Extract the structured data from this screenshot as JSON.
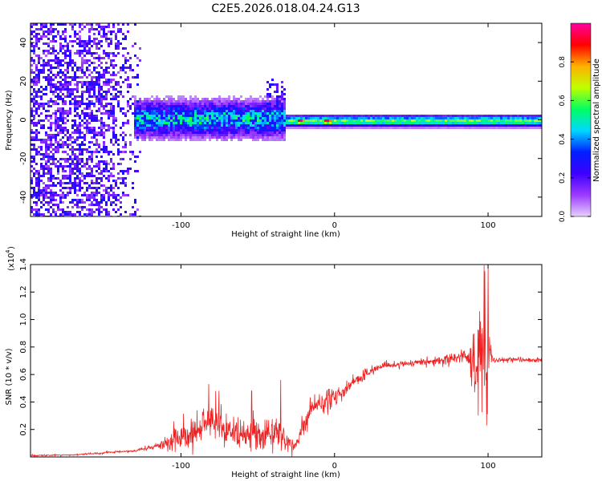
{
  "title": "C2E5.2026.018.04.24.G13",
  "chart_data": [
    {
      "type": "heatmap",
      "xlabel": "Height of straight line (km)",
      "ylabel": "Frequency (Hz)",
      "xlim": [
        -198,
        135
      ],
      "ylim": [
        -50,
        50
      ],
      "x_ticks": [
        -100,
        0,
        100
      ],
      "y_ticks": [
        -40,
        -20,
        0,
        20,
        40
      ],
      "colorbar": {
        "label": "Normalized spectral amplitude",
        "range": [
          0,
          1
        ],
        "ticks": [
          "0.0",
          "0.2",
          "0.4",
          "0.6",
          "0.8"
        ],
        "tick_values": [
          0.0,
          0.2,
          0.4,
          0.6,
          0.8
        ],
        "colors": [
          "#e6d0ff",
          "#9d3aff",
          "#3d00ff",
          "#0020ff",
          "#00d8ff",
          "#00ff60",
          "#c0ff00",
          "#ffb000",
          "#ff0000",
          "#ff00a0"
        ]
      },
      "features": [
        {
          "x_range": [
            -198,
            -125
          ],
          "description": "scattered low-amplitude noise across all frequencies"
        },
        {
          "x_range": [
            -132,
            -32
          ],
          "center_hz": 1,
          "amplitude": 0.45,
          "spread_hz": 9
        },
        {
          "x_range": [
            -32,
            135
          ],
          "center_hz": 0,
          "amplitude": 0.6,
          "spread_hz": 2.5
        },
        {
          "x": -22,
          "amplitude": 0.9
        },
        {
          "x": -5,
          "amplitude": 0.9
        },
        {
          "x": 97,
          "amplitude": 0.5
        }
      ]
    },
    {
      "type": "line",
      "xlabel": "Height of straight line (km)",
      "ylabel": "SNR (10 * v/v)",
      "y_scale_label": "(x10",
      "y_scale_exponent": "4",
      "xlim": [
        -198,
        135
      ],
      "ylim": [
        0,
        14000
      ],
      "x_ticks": [
        -100,
        0,
        100
      ],
      "y_tick_labels": [
        "0.2",
        "0.4",
        "0.6",
        "0.8",
        "1.0",
        "1.2",
        "1.4"
      ],
      "y_tick_values": [
        2000,
        4000,
        6000,
        8000,
        10000,
        12000,
        14000
      ],
      "series": [
        {
          "color": "#ee2222",
          "x": [
            -198,
            -170,
            -150,
            -130,
            -118,
            -105,
            -95,
            -88,
            -82,
            -78,
            -72,
            -65,
            -58,
            -50,
            -45,
            -38,
            -32,
            -26,
            -20,
            -15,
            -10,
            -5,
            0,
            5,
            10,
            20,
            30,
            40,
            50,
            60,
            70,
            80,
            86,
            90,
            93,
            96,
            98,
            99,
            100,
            101,
            103,
            110,
            120,
            135
          ],
          "y": [
            100,
            150,
            300,
            450,
            700,
            1000,
            1500,
            2000,
            2500,
            2600,
            2000,
            1700,
            1600,
            1500,
            1700,
            1800,
            1200,
            600,
            2500,
            3500,
            4000,
            4000,
            4500,
            4600,
            5200,
            6000,
            6600,
            6700,
            6800,
            6900,
            7000,
            7200,
            7400,
            7000,
            6000,
            8000,
            9000,
            7000,
            6000,
            7500,
            7000,
            7000,
            7100,
            7000
          ],
          "noise": [
            40,
            40,
            60,
            80,
            150,
            700,
            900,
            900,
            1000,
            1300,
            1000,
            900,
            900,
            900,
            1000,
            1000,
            700,
            500,
            800,
            700,
            700,
            700,
            600,
            500,
            400,
            300,
            200,
            200,
            200,
            250,
            300,
            350,
            400,
            1200,
            2500,
            3500,
            4000,
            3500,
            2500,
            1200,
            200,
            150,
            150,
            150
          ],
          "peaks": [
            {
              "x": 100,
              "y": 13800
            },
            {
              "x": 99,
              "y": 2300
            },
            {
              "x": -82,
              "y": 5300
            },
            {
              "x": -35,
              "y": 5600
            },
            {
              "x": -54,
              "y": 4800
            }
          ]
        }
      ]
    }
  ]
}
